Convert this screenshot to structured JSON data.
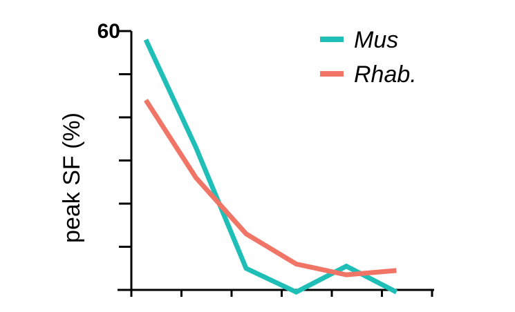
{
  "chart_data": {
    "type": "line",
    "title": "",
    "ylabel": "peak SF (%)",
    "xlabel": "",
    "ylim": [
      0,
      60
    ],
    "y_tick_count": 6,
    "y_tick_labels": [
      {
        "value": 60,
        "label": "60"
      }
    ],
    "x_tick_count": 7,
    "x_positions": [
      1,
      2,
      3,
      4,
      5,
      6
    ],
    "series": [
      {
        "name": "Mus",
        "color": "#1fbfb8",
        "values": [
          58,
          33,
          5,
          -0.5,
          5.5,
          -0.5
        ]
      },
      {
        "name": "Rhab.",
        "color": "#f07566",
        "values": [
          44,
          26,
          13,
          6,
          3.5,
          4.5
        ]
      }
    ],
    "legend_position": "top-right",
    "grid": false
  }
}
